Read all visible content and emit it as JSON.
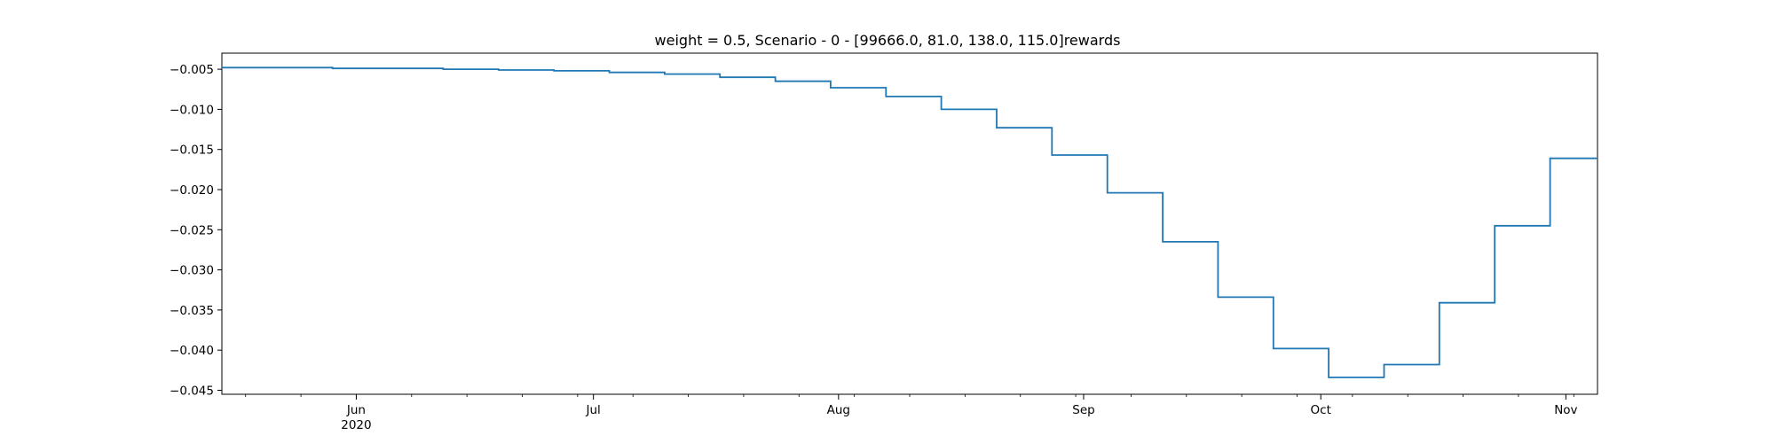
{
  "chart_data": {
    "type": "line",
    "drawstyle": "steps-post",
    "title": "weight = 0.5, Scenario - 0 - [99666.0, 81.0, 138.0, 115.0]rewards",
    "xlabel": "",
    "ylabel": "",
    "xlim": [
      "2020-05-15",
      "2020-11-05"
    ],
    "ylim": [
      -0.0455,
      -0.003
    ],
    "grid": false,
    "line_color": "#1f77b4",
    "x_ticks": [
      {
        "date": "2020-06-01",
        "label": "Jun",
        "sublabel": "2020"
      },
      {
        "date": "2020-07-01",
        "label": "Jul",
        "sublabel": ""
      },
      {
        "date": "2020-08-01",
        "label": "Aug",
        "sublabel": ""
      },
      {
        "date": "2020-09-01",
        "label": "Sep",
        "sublabel": ""
      },
      {
        "date": "2020-10-01",
        "label": "Oct",
        "sublabel": ""
      },
      {
        "date": "2020-11-01",
        "label": "Nov",
        "sublabel": ""
      }
    ],
    "y_ticks": [
      {
        "value": -0.005,
        "label": "−0.005"
      },
      {
        "value": -0.01,
        "label": "−0.010"
      },
      {
        "value": -0.015,
        "label": "−0.015"
      },
      {
        "value": -0.02,
        "label": "−0.020"
      },
      {
        "value": -0.025,
        "label": "−0.025"
      },
      {
        "value": -0.03,
        "label": "−0.030"
      },
      {
        "value": -0.035,
        "label": "−0.035"
      },
      {
        "value": -0.04,
        "label": "−0.040"
      },
      {
        "value": -0.045,
        "label": "−0.045"
      }
    ],
    "series": [
      {
        "name": "",
        "points": [
          {
            "x": "2020-05-15",
            "y": -0.0048
          },
          {
            "x": "2020-05-22",
            "y": -0.0048
          },
          {
            "x": "2020-05-29",
            "y": -0.0049
          },
          {
            "x": "2020-06-05",
            "y": -0.0049
          },
          {
            "x": "2020-06-12",
            "y": -0.005
          },
          {
            "x": "2020-06-19",
            "y": -0.0051
          },
          {
            "x": "2020-06-26",
            "y": -0.0052
          },
          {
            "x": "2020-07-03",
            "y": -0.0054
          },
          {
            "x": "2020-07-10",
            "y": -0.0056
          },
          {
            "x": "2020-07-17",
            "y": -0.006
          },
          {
            "x": "2020-07-24",
            "y": -0.0065
          },
          {
            "x": "2020-07-31",
            "y": -0.0073
          },
          {
            "x": "2020-08-07",
            "y": -0.0084
          },
          {
            "x": "2020-08-14",
            "y": -0.01
          },
          {
            "x": "2020-08-21",
            "y": -0.0123
          },
          {
            "x": "2020-08-28",
            "y": -0.0157
          },
          {
            "x": "2020-09-04",
            "y": -0.0204
          },
          {
            "x": "2020-09-11",
            "y": -0.0265
          },
          {
            "x": "2020-09-18",
            "y": -0.0334
          },
          {
            "x": "2020-09-25",
            "y": -0.0398
          },
          {
            "x": "2020-10-02",
            "y": -0.0434
          },
          {
            "x": "2020-10-09",
            "y": -0.0418
          },
          {
            "x": "2020-10-16",
            "y": -0.0341
          },
          {
            "x": "2020-10-23",
            "y": -0.0245
          },
          {
            "x": "2020-10-30",
            "y": -0.0161
          }
        ]
      }
    ]
  }
}
